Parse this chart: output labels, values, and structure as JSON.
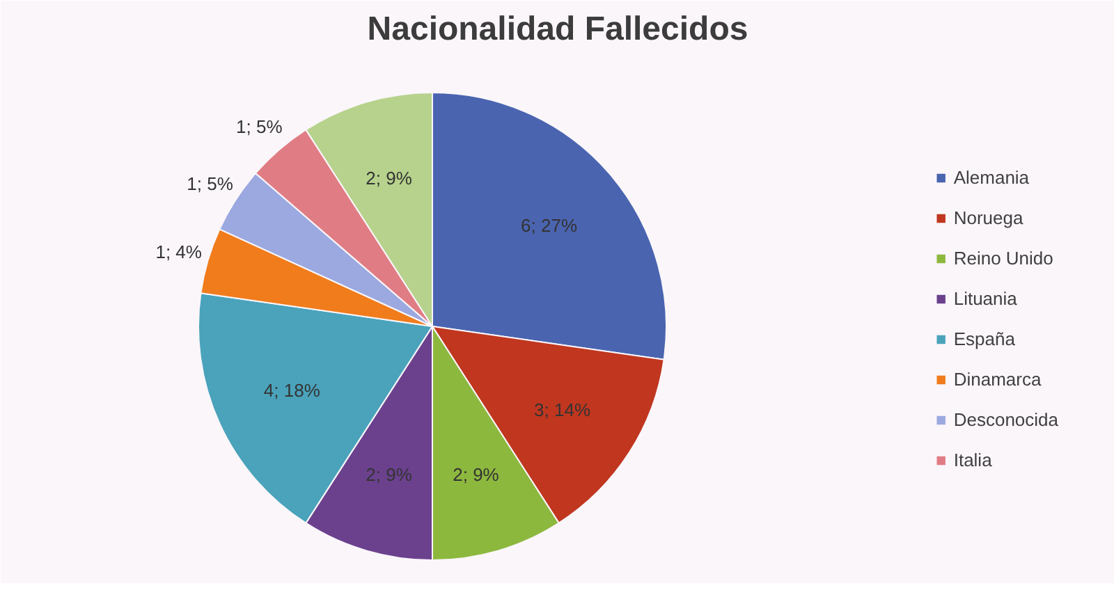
{
  "chart_data": {
    "type": "pie",
    "title": "Nacionalidad Fallecidos",
    "categories": [
      "Alemania",
      "Noruega",
      "Reino Unido",
      "Lituania",
      "España",
      "Dinamarca",
      "Desconocida",
      "Italia",
      null
    ],
    "values": [
      6,
      3,
      2,
      2,
      4,
      1,
      1,
      1,
      2
    ],
    "value_labels": [
      "6; 27%",
      "3; 14%",
      "2; 9%",
      "2; 9%",
      "4; 18%",
      "1; 4%",
      "1; 5%",
      "1; 5%",
      "2; 9%"
    ],
    "colors": [
      "#4a64b0",
      "#c0361f",
      "#8db83e",
      "#6b418e",
      "#4aa3bb",
      "#f07c1c",
      "#9ba9e0",
      "#e07d84",
      "#b7d28c"
    ],
    "legend": "right"
  }
}
